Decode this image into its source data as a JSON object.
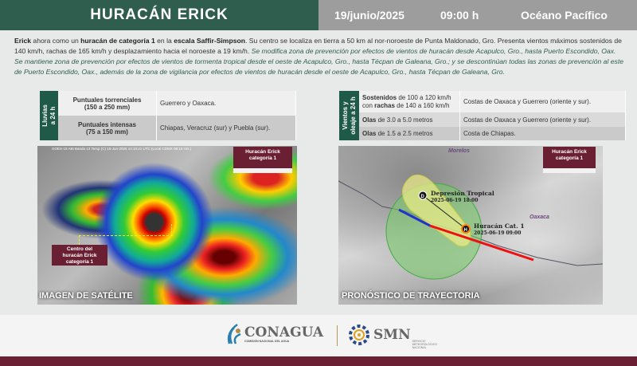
{
  "header": {
    "title": "HURACÁN ERICK",
    "date": "19/junio/2025",
    "time": "09:00 h",
    "ocean": "Océano Pacífico"
  },
  "intro": {
    "p1_name": "Erick",
    "p1_a": " ahora como un ",
    "p1_cat": "huracán de categoría 1",
    "p1_b": " en la ",
    "p1_scale": "escala Saffir-Simpson",
    "p1_c": ". Su centro se localiza en tierra a 50 km al nor-noroeste de Punta Maldonado, Gro. Presenta vientos máximos sostenidos de 140 km/h, rachas de 165 km/h y desplazamiento hacia el noroeste a 19 km/h. ",
    "p1_italic": "Se modifica zona de prevención por efectos de vientos de huracán desde Acapulco, Gro., hasta Puerto Escondido, Oax. Se mantiene zona de prevención por efectos de vientos de tormenta tropical desde el oeste de Acapulco, Gro., hasta Técpan de Galeana, Gro.; y se descontinúan todas las zonas de prevención al este de Puerto Escondido, Oax., además de la zona de vigilancia por efectos de vientos de huracán desde el oeste de Acapulco, Gro., hasta Técpan de Galeana, Gro."
  },
  "rain_table": {
    "label_1": "Lluvias",
    "label_2": "a 24 h",
    "rows": [
      {
        "title": "Puntuales torrenciales",
        "range": "(150 a 250 mm)",
        "areas": "Guerrero y Oaxaca."
      },
      {
        "title": "Puntuales intensas",
        "range": "(75 a 150 mm)",
        "areas": "Chiapas, Veracruz (sur) y Puebla (sur)."
      }
    ]
  },
  "wind_table": {
    "label_1": "Vientos y",
    "label_2": "oleaje a 24 h",
    "rows": [
      {
        "bold1": "Sostenidos",
        "text1": " de 100 a 120 km/h con ",
        "bold2": "rachas",
        "text2": " de 140 a 160 km/h",
        "areas": "Costas de Oaxaca y Guerrero (oriente y sur)."
      },
      {
        "bold1": "Olas",
        "text1": " de 3.0 a 5.0 metros",
        "bold2": "",
        "text2": "",
        "areas": "Costas de Oaxaca y Guerrero (oriente y sur)."
      },
      {
        "bold1": "Olas",
        "text1": " de 1.5 a 2.5 metros",
        "bold2": "",
        "text2": "",
        "areas": "Costa de Chiapas."
      }
    ]
  },
  "satellite": {
    "header": "GOES-19 ABI Banda 13 Temp (C) 19-Jun-2025 14:10:21 UTC (Local CDMX 08:10 Hrs.)",
    "badge_1": "Huracán Erick",
    "badge_2": "categoría 1",
    "center_1": "Centro del",
    "center_2": "huracán Erick",
    "center_3": "categoría 1",
    "caption": "IMAGEN DE SATÉLITE"
  },
  "forecast": {
    "badge_1": "Huracán Erick",
    "badge_2": "categoría 1",
    "state_1": "Morelos",
    "state_2": "Oaxaca",
    "point_d_letter": "D",
    "point_d_label": "Depresión Tropical",
    "point_d_time": "2025-06-19 18:00",
    "point_h_letter": "H",
    "point_h_label": "Huracán Cat. 1",
    "point_h_time": "2025-06-19 09:00",
    "caption": "PRONÓSTICO DE TRAYECTORIA"
  },
  "footer": {
    "conagua": "CONAGUA",
    "conagua_sub": "COMISIÓN NACIONAL DEL AGUA",
    "smn": "SMN",
    "smn_sub_1": "SERVICIO",
    "smn_sub_2": "METEOROLÓGICO",
    "smn_sub_3": "NACIONAL"
  },
  "colors": {
    "header_green": "#2f5e4f",
    "header_gray": "#9d9d9d",
    "maroon": "#6b1f33",
    "table_green": "#1f5a48"
  }
}
